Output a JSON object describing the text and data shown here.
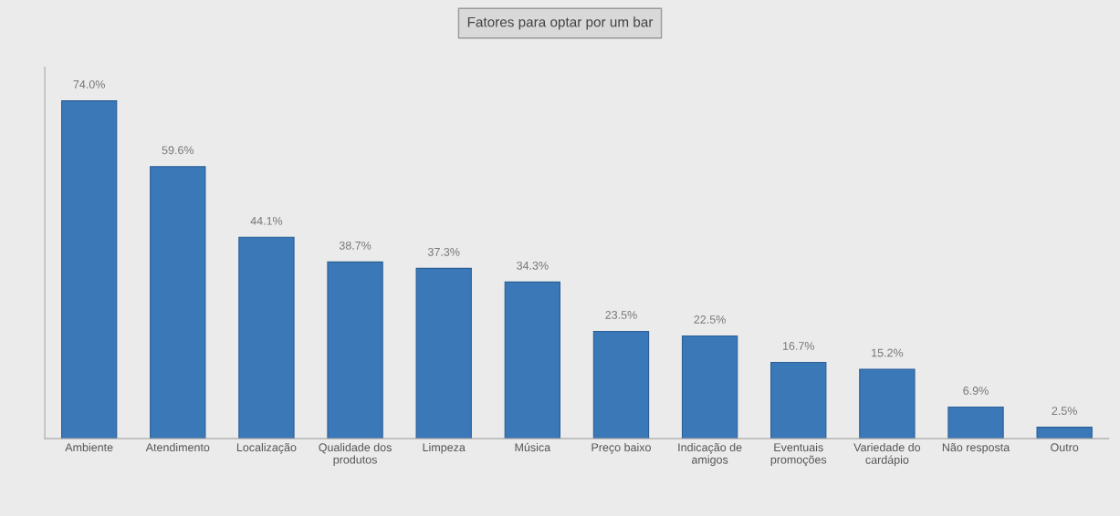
{
  "chart_data": {
    "type": "bar",
    "title": "Fatores para optar por um bar",
    "categories": [
      "Ambiente",
      "Atendimento",
      "Localização",
      "Qualidade dos\nprodutos",
      "Limpeza",
      "Música",
      "Preço baixo",
      "Indicação de\namigos",
      "Eventuais\npromoções",
      "Variedade do\ncardápio",
      "Não resposta",
      "Outro"
    ],
    "values": [
      74.0,
      59.6,
      44.1,
      38.7,
      37.3,
      34.3,
      23.5,
      22.5,
      16.7,
      15.2,
      6.9,
      2.5
    ],
    "value_labels": [
      "74.0%",
      "59.6%",
      "44.1%",
      "38.7%",
      "37.3%",
      "34.3%",
      "23.5%",
      "22.5%",
      "16.7%",
      "15.2%",
      "6.9%",
      "2.5%"
    ],
    "color": "#3b78b8",
    "grid": false,
    "legend": false
  }
}
